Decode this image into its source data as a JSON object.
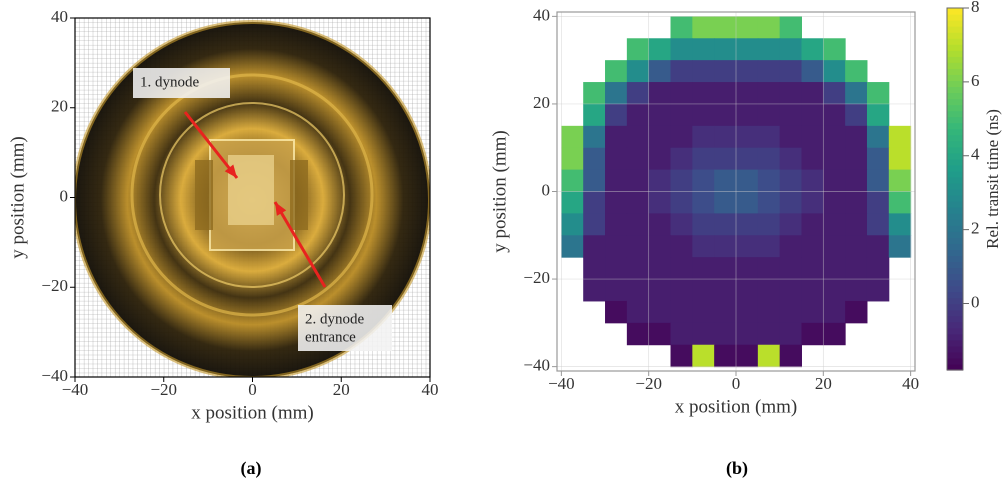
{
  "chart_data": [
    {
      "type": "image",
      "xlabel": "x position (mm)",
      "ylabel": "y position (mm)",
      "xlim": [
        -40,
        40
      ],
      "ylim": [
        -40,
        40
      ],
      "xticks": [
        {
          "value": -40,
          "label": "−40"
        },
        {
          "value": -20,
          "label": "−20"
        },
        0,
        20,
        40
      ],
      "yticks": [
        {
          "value": -40,
          "label": "−40"
        },
        {
          "value": -20,
          "label": "−20"
        },
        0,
        20,
        40
      ],
      "annotations": [
        {
          "text": [
            "1. dynode"
          ],
          "color": "#e8231f"
        },
        {
          "text": [
            "2. dynode",
            "entrance"
          ],
          "color": "#e8231f"
        }
      ],
      "caption": "(a)"
    },
    {
      "type": "heatmap",
      "xlabel": "x position (mm)",
      "ylabel": "y position (mm)",
      "xlim": [
        -41,
        41
      ],
      "ylim": [
        -41,
        41
      ],
      "xticks": [
        {
          "value": -40,
          "label": "−40"
        },
        {
          "value": -20,
          "label": "−20"
        },
        0,
        20,
        40
      ],
      "yticks": [
        {
          "value": -40,
          "label": "−40"
        },
        {
          "value": -20,
          "label": "−20"
        },
        0,
        20,
        40
      ],
      "grid": true,
      "colormap": "viridis",
      "colorbar_label": "Rel. transit time (ns)",
      "zlim": [
        -1.8,
        8
      ],
      "zticks": [
        0,
        2,
        4,
        6,
        8
      ],
      "x": [
        -37.5,
        -32.5,
        -27.5,
        -22.5,
        -17.5,
        -12.5,
        -7.5,
        -2.5,
        2.5,
        7.5,
        12.5,
        17.5,
        22.5,
        27.5,
        32.5,
        37.5
      ],
      "y": [
        37.5,
        32.5,
        27.5,
        22.5,
        17.5,
        12.5,
        7.5,
        2.5,
        -2.5,
        -7.5,
        -12.5,
        -17.5,
        -22.5,
        -27.5,
        -32.5,
        -37.5
      ],
      "z": [
        [
          null,
          null,
          null,
          null,
          null,
          5,
          6,
          6,
          6,
          6,
          5,
          null,
          null,
          null,
          null,
          null
        ],
        [
          null,
          null,
          null,
          5,
          4,
          3,
          3,
          3,
          3,
          3,
          3,
          4,
          5,
          null,
          null,
          null
        ],
        [
          null,
          null,
          5,
          3,
          1,
          0,
          0,
          0,
          0,
          0,
          0,
          1,
          3,
          5,
          null,
          null
        ],
        [
          null,
          5,
          2,
          0,
          -1,
          -1,
          -1,
          -1,
          -1,
          -1,
          -1,
          -1,
          0,
          2,
          5,
          null
        ],
        [
          null,
          4,
          0,
          -1,
          -1,
          -1,
          -1,
          -1,
          -1,
          -1,
          -1,
          -1,
          -1,
          0,
          4,
          null
        ],
        [
          6,
          2,
          -1,
          -1,
          -1,
          -1,
          -0.5,
          -0.5,
          -0.5,
          -0.5,
          -1,
          -1,
          -1,
          -1,
          2,
          7
        ],
        [
          6,
          1,
          -1,
          -1,
          -1,
          -0.5,
          0,
          0,
          0,
          0,
          -0.5,
          -1,
          -1,
          -1,
          1,
          7
        ],
        [
          5,
          1,
          -1,
          -1,
          -0.5,
          0,
          0.5,
          1,
          1,
          0.5,
          0,
          -0.5,
          -1,
          -1,
          1,
          6
        ],
        [
          4,
          0,
          -1,
          -1,
          -0.5,
          0,
          0.5,
          1,
          1,
          0.5,
          0,
          -0.5,
          -1,
          -1,
          0,
          5
        ],
        [
          3,
          0,
          -1,
          -1,
          -1,
          -0.5,
          0,
          0,
          0,
          0,
          -0.5,
          -1,
          -1,
          -1,
          0,
          3
        ],
        [
          2,
          -1,
          -1,
          -1,
          -1,
          -1,
          -0.5,
          -0.5,
          -0.5,
          -0.5,
          -1,
          -1,
          -1,
          -1,
          -1,
          2
        ],
        [
          null,
          -1,
          -1,
          -1,
          -1,
          -1,
          -1,
          -1,
          -1,
          -1,
          -1,
          -1,
          -1,
          -1,
          -1,
          null
        ],
        [
          null,
          -1,
          -1,
          -1,
          -1,
          -1,
          -1,
          -1,
          -1,
          -1,
          -1,
          -1,
          -1,
          -1,
          -1,
          null
        ],
        [
          null,
          null,
          -1.5,
          -1,
          -1,
          -1,
          -1,
          -1,
          -1,
          -1,
          -1,
          -1,
          -1,
          -1.5,
          null,
          null
        ],
        [
          null,
          null,
          null,
          -1.5,
          -1.5,
          -1,
          -1,
          -1,
          -1,
          -1,
          -1,
          -1.5,
          -1.5,
          null,
          null,
          null
        ],
        [
          null,
          null,
          null,
          null,
          null,
          -1.5,
          7,
          -1.5,
          -1.5,
          7,
          -1.5,
          null,
          null,
          null,
          null,
          null
        ]
      ],
      "caption": "(b)"
    }
  ]
}
